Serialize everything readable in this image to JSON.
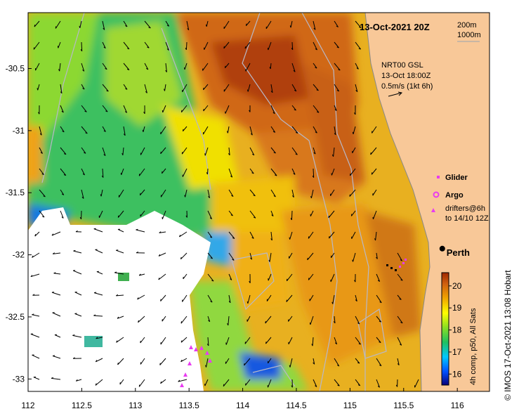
{
  "title": "13-Oct-2021 20Z",
  "isobath_legend": [
    "200m",
    "1000m"
  ],
  "current_legend": {
    "model": "NRT00 GSL",
    "time": "13-Oct 18:00Z",
    "scale": "0.5m/s (1kt 6h)"
  },
  "markers_legend": {
    "glider": "Glider",
    "argo": "Argo",
    "drifters_line1": "drifters@6h",
    "drifters_line2": "to 14/10 12Z"
  },
  "city_label": "Perth",
  "city_coords": {
    "lon": 115.86,
    "lat": -31.95
  },
  "colorbar": {
    "ticks": [
      "16",
      "17",
      "18",
      "19",
      "20"
    ],
    "min": 15.5,
    "max": 20.6,
    "label": "4h comp, p50, All Sats"
  },
  "credit": "© IMOS 17-Oct-2021 13:08 Hobart",
  "x_axis": {
    "ticks": [
      "112",
      "112.5",
      "113",
      "113.5",
      "114",
      "114.5",
      "115",
      "115.5",
      "116"
    ],
    "range": [
      112.0,
      116.3
    ]
  },
  "y_axis": {
    "ticks": [
      "-30.5",
      "-31",
      "-31.5",
      "-32",
      "-32.5",
      "-33"
    ],
    "range": [
      -33.1,
      -30.05
    ]
  },
  "colors": {
    "land": "#f8c898",
    "glider": "#e83cf0",
    "argo": "#e83cf0",
    "drifter": "#e83cf0",
    "no_data": "#ffffff"
  }
}
